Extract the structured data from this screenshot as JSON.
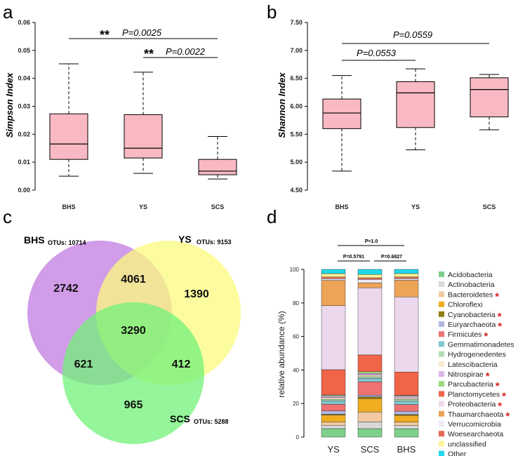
{
  "panels": {
    "a": {
      "label": "a",
      "ylabel": "Simpson Index",
      "categories": [
        "BHS",
        "YS",
        "SCS"
      ],
      "yticks": [
        "0.00",
        "0.01",
        "0.02",
        "0.03",
        "0.04",
        "0.05",
        "0.06"
      ],
      "comparisons": [
        {
          "sig": "**",
          "p": "P=0.0025"
        },
        {
          "sig": "**",
          "p": "P=0.0022"
        }
      ]
    },
    "b": {
      "label": "b",
      "ylabel": "Shannon Index",
      "categories": [
        "BHS",
        "YS",
        "SCS"
      ],
      "yticks": [
        "4.50",
        "5.00",
        "5.50",
        "6.00",
        "6.50",
        "7.00",
        "7.50"
      ],
      "comparisons": [
        {
          "p": "P=0.0559"
        },
        {
          "p": "P=0.0553"
        }
      ]
    },
    "c": {
      "label": "c",
      "sets": [
        {
          "name": "BHS",
          "otu_label": "OTUs: 10714"
        },
        {
          "name": "YS",
          "otu_label": "OTUs: 9153"
        },
        {
          "name": "SCS",
          "otu_label": "OTUs: 5288"
        }
      ],
      "regions": {
        "bhs_only": "2742",
        "ys_only": "1390",
        "scs_only": "965",
        "bhs_ys": "4061",
        "bhs_scs": "621",
        "ys_scs": "412",
        "all": "3290"
      }
    },
    "d": {
      "label": "d",
      "ylabel": "relative abundance (%)",
      "yticks": [
        "0",
        "20",
        "40",
        "60",
        "80",
        "100"
      ],
      "comparisons": [
        {
          "p": "P=1.0"
        },
        {
          "p": "P=0.5791"
        },
        {
          "p": "P=0.6827"
        }
      ],
      "star_glyph": "*"
    }
  },
  "colors": {
    "box_fill": "#f9b9c3",
    "venn_bhs": "#c27be0",
    "venn_ys": "#fbfb7d",
    "venn_scs": "#72f27a",
    "star": "#d62020"
  },
  "chart_data": [
    {
      "type": "box",
      "title": "",
      "ylabel": "Simpson Index",
      "categories": [
        "BHS",
        "YS",
        "SCS"
      ],
      "ylim": [
        0,
        0.06
      ],
      "boxes": [
        {
          "name": "BHS",
          "min": 0.005,
          "q1": 0.011,
          "median": 0.0165,
          "q3": 0.0273,
          "max": 0.0452
        },
        {
          "name": "YS",
          "min": 0.006,
          "q1": 0.0115,
          "median": 0.015,
          "q3": 0.027,
          "max": 0.0422
        },
        {
          "name": "SCS",
          "min": 0.004,
          "q1": 0.0055,
          "median": 0.0068,
          "q3": 0.011,
          "max": 0.0192
        }
      ]
    },
    {
      "type": "box",
      "title": "",
      "ylabel": "Shannon Index",
      "categories": [
        "BHS",
        "YS",
        "SCS"
      ],
      "ylim": [
        4.5,
        7.5
      ],
      "boxes": [
        {
          "name": "BHS",
          "min": 4.84,
          "q1": 5.6,
          "median": 5.88,
          "q3": 6.13,
          "max": 6.55
        },
        {
          "name": "YS",
          "min": 5.22,
          "q1": 5.62,
          "median": 6.24,
          "q3": 6.44,
          "max": 6.67
        },
        {
          "name": "SCS",
          "min": 5.58,
          "q1": 5.81,
          "median": 6.3,
          "q3": 6.51,
          "max": 6.57
        }
      ]
    },
    {
      "type": "venn",
      "sets": [
        "BHS",
        "YS",
        "SCS"
      ]
    },
    {
      "type": "bar",
      "stacked": true,
      "ylabel": "relative abundance (%)",
      "ylim": [
        0,
        100
      ],
      "categories": [
        "YS",
        "SCS",
        "BHS"
      ],
      "series": [
        {
          "name": "Acidobacteria",
          "color": "#7fd08c",
          "starred": false,
          "values": [
            5,
            5,
            5
          ]
        },
        {
          "name": "Actinobacteria",
          "color": "#d8d8d8",
          "starred": false,
          "values": [
            2,
            4,
            2
          ]
        },
        {
          "name": "Bacteroidetes",
          "color": "#f2c9a1",
          "starred": true,
          "values": [
            2,
            6,
            2
          ]
        },
        {
          "name": "Chloroflexi",
          "color": "#f0ad20",
          "starred": false,
          "values": [
            4,
            8,
            4
          ]
        },
        {
          "name": "Cyanobacteria",
          "color": "#8d7d14",
          "starred": true,
          "values": [
            0.5,
            1,
            0.5
          ]
        },
        {
          "name": "Euryarchaeota",
          "color": "#b0b8e0",
          "starred": true,
          "values": [
            2,
            1,
            2
          ]
        },
        {
          "name": "Firmicutes",
          "color": "#ee7272",
          "starred": true,
          "values": [
            4,
            8,
            4
          ]
        },
        {
          "name": "Gemmatimonadetes",
          "color": "#82c8d2",
          "starred": false,
          "values": [
            2,
            2,
            2
          ]
        },
        {
          "name": "Hydrogenedentes",
          "color": "#b4dcb4",
          "starred": false,
          "values": [
            1,
            1,
            1
          ]
        },
        {
          "name": "Latescibacteria",
          "color": "#f6eacb",
          "starred": false,
          "values": [
            1,
            1,
            1
          ]
        },
        {
          "name": "Nitrospirae",
          "color": "#dbb8ea",
          "starred": true,
          "values": [
            1,
            1,
            1
          ]
        },
        {
          "name": "Parcubacteria",
          "color": "#9ed87a",
          "starred": true,
          "values": [
            0.5,
            1,
            0.5
          ]
        },
        {
          "name": "Planctomycetes",
          "color": "#f06448",
          "starred": true,
          "values": [
            15,
            10,
            14
          ]
        },
        {
          "name": "Proteobacteria",
          "color": "#ecd8ec",
          "starred": true,
          "values": [
            38,
            40,
            45
          ]
        },
        {
          "name": "Thaumarchaeota",
          "color": "#eda456",
          "starred": true,
          "values": [
            15,
            3,
            10
          ]
        },
        {
          "name": "Verrucomicrobia",
          "color": "#eceaf4",
          "starred": false,
          "values": [
            1,
            2,
            1
          ]
        },
        {
          "name": "Woesearchaeota",
          "color": "#e66a55",
          "starred": false,
          "values": [
            1,
            1,
            1
          ]
        },
        {
          "name": "unclassified",
          "color": "#fdf59a",
          "starred": false,
          "values": [
            2,
            2,
            2
          ]
        },
        {
          "name": "Other",
          "color": "#20d8e8",
          "starred": false,
          "values": [
            2.5,
            3,
            2.5
          ]
        }
      ]
    }
  ]
}
